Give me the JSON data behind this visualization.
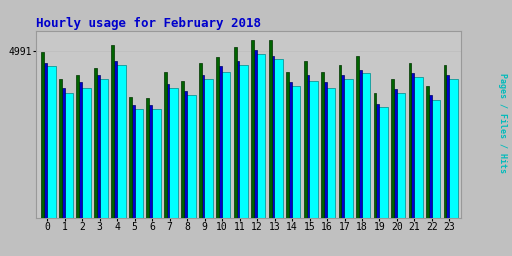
{
  "title": "Hourly usage for February 2018",
  "ylabel_rotated": "Pages / Files / Hits",
  "ytick_label": "4991",
  "hours": [
    0,
    1,
    2,
    3,
    4,
    5,
    6,
    7,
    8,
    9,
    10,
    11,
    12,
    13,
    14,
    15,
    16,
    17,
    18,
    19,
    20,
    21,
    22,
    23
  ],
  "pages": [
    0.93,
    0.78,
    0.8,
    0.84,
    0.97,
    0.68,
    0.67,
    0.82,
    0.77,
    0.87,
    0.9,
    0.96,
    1.0,
    1.0,
    0.82,
    0.88,
    0.82,
    0.86,
    0.91,
    0.7,
    0.78,
    0.87,
    0.74,
    0.86
  ],
  "files": [
    0.87,
    0.73,
    0.76,
    0.8,
    0.88,
    0.63,
    0.63,
    0.75,
    0.71,
    0.8,
    0.85,
    0.88,
    0.94,
    0.91,
    0.76,
    0.8,
    0.76,
    0.8,
    0.83,
    0.64,
    0.72,
    0.81,
    0.69,
    0.8
  ],
  "hits": [
    0.85,
    0.7,
    0.73,
    0.78,
    0.86,
    0.61,
    0.61,
    0.73,
    0.69,
    0.78,
    0.82,
    0.86,
    0.92,
    0.89,
    0.74,
    0.77,
    0.73,
    0.78,
    0.81,
    0.62,
    0.7,
    0.79,
    0.66,
    0.78
  ],
  "color_pages": "#006400",
  "color_files": "#0000CD",
  "color_hits": "#00FFFF",
  "color_hits_edge": "#008888",
  "bg_color": "#C0C0C0",
  "plot_bg": "#C8C8C8",
  "title_color": "#0000CC",
  "ylabel_color": "#00BBBB",
  "bar_width": 0.3,
  "ylim_max": 1.05,
  "xlabel_fontsize": 7,
  "title_fontsize": 9
}
